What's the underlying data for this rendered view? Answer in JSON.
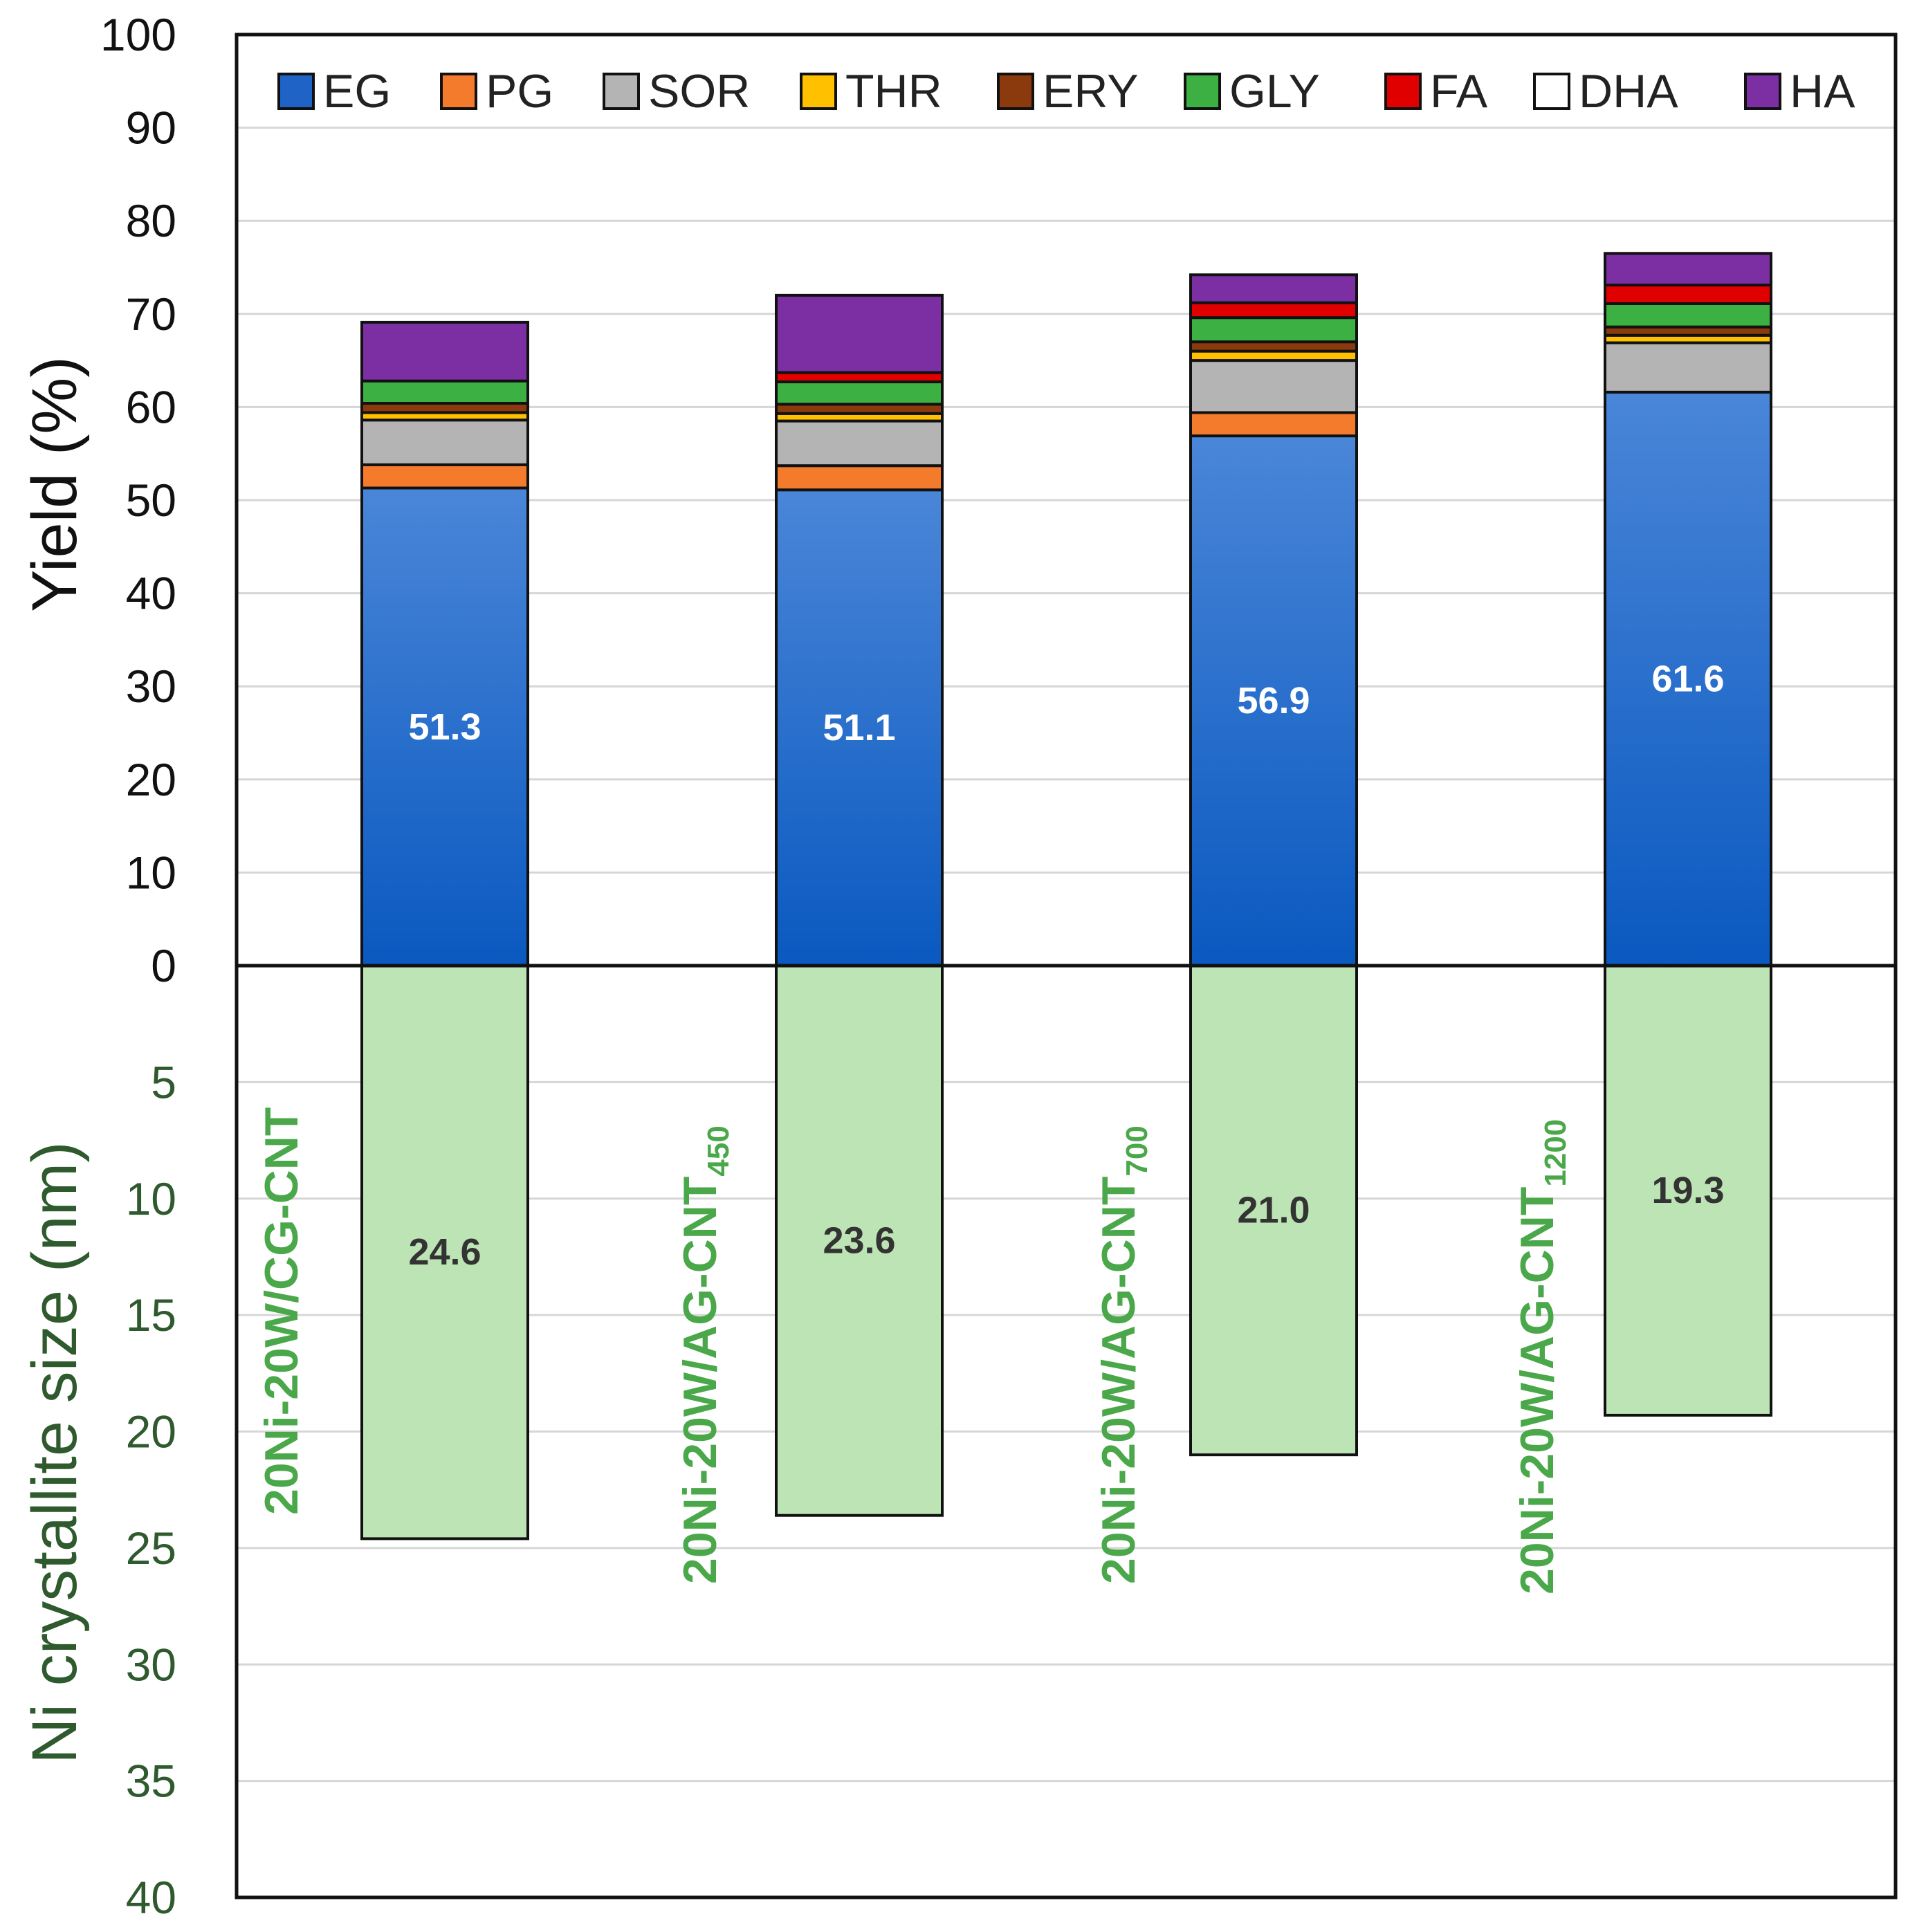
{
  "chart_data": {
    "type": "bar",
    "stacked": true,
    "categories": [
      {
        "main": "20Ni-20W/CG-CNT",
        "sub": ""
      },
      {
        "main": "20Ni-20W/AG-CNT",
        "sub": "450"
      },
      {
        "main": "20Ni-20W/AG-CNT",
        "sub": "700"
      },
      {
        "main": "20Ni-20W/AG-CNT",
        "sub": "1200"
      }
    ],
    "top_panel": {
      "ylabel": "Yield (%)",
      "ylim": [
        0,
        100
      ],
      "yticks": [
        "0",
        "10",
        "20",
        "30",
        "40",
        "50",
        "60",
        "70",
        "80",
        "90",
        "100"
      ],
      "grid": true,
      "legend_position": "top",
      "series": [
        {
          "name": "EG",
          "color": "#1f63c6",
          "values": [
            51.3,
            51.1,
            56.9,
            61.6
          ],
          "labels": [
            "51.3",
            "51.1",
            "56.9",
            "61.6"
          ]
        },
        {
          "name": "PG",
          "color": "#f47a2c",
          "values": [
            2.5,
            2.6,
            2.5,
            0.0
          ]
        },
        {
          "name": "SOR",
          "color": "#b4b4b4",
          "values": [
            4.8,
            4.8,
            5.6,
            5.3
          ]
        },
        {
          "name": "THR",
          "color": "#ffc000",
          "values": [
            0.8,
            0.8,
            1.0,
            0.8
          ]
        },
        {
          "name": "ERY",
          "color": "#8b3a0e",
          "values": [
            1.0,
            1.0,
            1.0,
            0.9
          ]
        },
        {
          "name": "GLY",
          "color": "#3cb043",
          "values": [
            2.4,
            2.4,
            2.6,
            2.5
          ]
        },
        {
          "name": "FA",
          "color": "#e00000",
          "values": [
            0.0,
            1.0,
            1.6,
            2.0
          ]
        },
        {
          "name": "DHA",
          "color": "#ffffff",
          "values": [
            0.0,
            0.0,
            0.0,
            0.0
          ]
        },
        {
          "name": "HA",
          "color": "#7b2fa3",
          "values": [
            6.3,
            8.3,
            3.0,
            3.4
          ]
        }
      ]
    },
    "bottom_panel": {
      "ylabel": "Ni crystallite size (nm)",
      "ylim": [
        0,
        40
      ],
      "inverted": true,
      "yticks": [
        "5",
        "10",
        "15",
        "20",
        "25",
        "30",
        "35",
        "40"
      ],
      "grid": true,
      "series": [
        {
          "name": "Ni crystallite size",
          "color": "#bde4b4",
          "values": [
            24.6,
            23.6,
            21.0,
            19.3
          ],
          "labels": [
            "24.6",
            "23.6",
            "21.0",
            "19.3"
          ]
        }
      ]
    }
  }
}
